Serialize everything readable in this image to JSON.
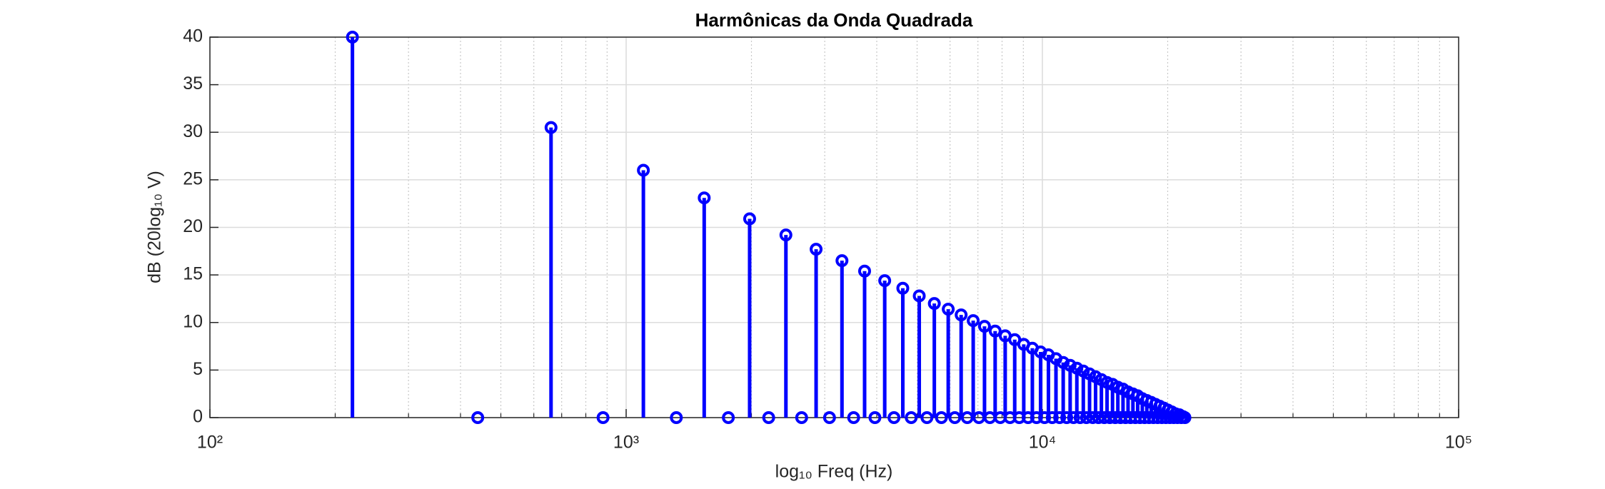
{
  "chart_data": {
    "type": "stem",
    "title": "Harmônicas da Onda Quadrada",
    "xlabel": "log₁₀ Freq (Hz)",
    "ylabel": "dB (20log₁₀ V)",
    "xscale": "log",
    "grid": true,
    "color": "#0000ff",
    "x": [
      220,
      440,
      660,
      880,
      1100,
      1320,
      1540,
      1760,
      1980,
      2200,
      2420,
      2640,
      2860,
      3080,
      3300,
      3520,
      3740,
      3960,
      4180,
      4400,
      4620,
      4840,
      5060,
      5280,
      5500,
      5720,
      5940,
      6160,
      6380,
      6600,
      6820,
      7040,
      7260,
      7480,
      7700,
      7920,
      8140,
      8360,
      8580,
      8800,
      9020,
      9240,
      9460,
      9680,
      9900,
      10120,
      10340,
      10560,
      10780,
      11000,
      11220,
      11440,
      11660,
      11880,
      12100,
      12320,
      12540,
      12760,
      12980,
      13200,
      13420,
      13640,
      13860,
      14080,
      14300,
      14520,
      14740,
      14960,
      15180,
      15400,
      15620,
      15840,
      16060,
      16280,
      16500,
      16720,
      16940,
      17160,
      17380,
      17600,
      17820,
      18040,
      18260,
      18480,
      18700,
      18920,
      19140,
      19360,
      19580,
      19800,
      20020,
      20240,
      20460,
      20680,
      20900,
      21120,
      21340,
      21560,
      21780,
      22000
    ],
    "values": [
      40,
      0,
      30.5,
      0,
      26.0,
      0,
      23.1,
      0,
      20.9,
      0,
      19.2,
      0,
      17.7,
      0,
      16.5,
      0,
      15.4,
      0,
      14.4,
      0,
      13.6,
      0,
      12.8,
      0,
      12.0,
      0,
      11.4,
      0,
      10.8,
      0,
      10.2,
      0,
      9.6,
      0,
      9.1,
      0,
      8.6,
      0,
      8.2,
      0,
      7.7,
      0,
      7.3,
      0,
      6.9,
      0,
      6.6,
      0,
      6.2,
      0,
      5.8,
      0,
      5.5,
      0,
      5.2,
      0,
      4.9,
      0,
      4.6,
      0,
      4.3,
      0,
      4.0,
      0,
      3.7,
      0,
      3.5,
      0,
      3.2,
      0,
      3.0,
      0,
      2.7,
      0,
      2.5,
      0,
      2.3,
      0,
      2.0,
      0,
      1.8,
      0,
      1.6,
      0,
      1.4,
      0,
      1.2,
      0,
      1.0,
      0,
      0.8,
      0,
      0.6,
      0,
      0.4,
      0,
      0.3,
      0,
      0.1,
      0
    ],
    "xlim": [
      100,
      100000
    ],
    "xticks": [
      {
        "value": 100,
        "label": "10²"
      },
      {
        "value": 1000,
        "label": "10³"
      },
      {
        "value": 10000,
        "label": "10⁴"
      },
      {
        "value": 100000,
        "label": "10⁵"
      }
    ],
    "xminorticks": [
      200,
      300,
      400,
      500,
      600,
      700,
      800,
      900,
      2000,
      3000,
      4000,
      5000,
      6000,
      7000,
      8000,
      9000,
      20000,
      30000,
      40000,
      50000,
      60000,
      70000,
      80000,
      90000
    ],
    "ylim": [
      0,
      40
    ],
    "yticks": [
      0,
      5,
      10,
      15,
      20,
      25,
      30,
      35,
      40
    ]
  }
}
